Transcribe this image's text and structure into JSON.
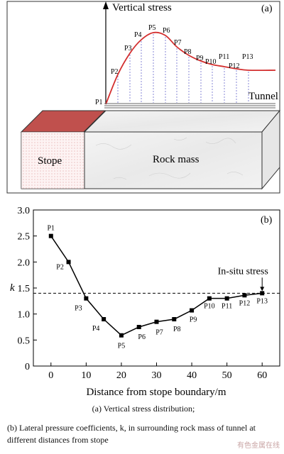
{
  "chart_data": [
    {
      "type": "diagram",
      "panel_label": "(a)",
      "ylabel": "Vertical stress",
      "points": [
        "P1",
        "P2",
        "P3",
        "P4",
        "P5",
        "P6",
        "P7",
        "P8",
        "P9",
        "P10",
        "P11",
        "P12",
        "P13"
      ],
      "tunnel_label": "Tunnel",
      "stope_label": "Stope",
      "rock_label": "Rock mass",
      "colors": {
        "curve": "#d32f2f",
        "stope": "#c0504d",
        "dashes": "#6a6acd"
      }
    },
    {
      "type": "line",
      "panel_label": "(b)",
      "xlabel": "Distance from stope boundary/m",
      "ylabel": "k",
      "xlim": [
        -5,
        65
      ],
      "ylim": [
        0,
        3.0
      ],
      "xticks": [
        0,
        10,
        20,
        30,
        40,
        50,
        60
      ],
      "yticks": [
        "0",
        "0.5",
        "1.0",
        "1.5",
        "2.0",
        "2.5",
        "3.0"
      ],
      "x": [
        0,
        5,
        10,
        15,
        20,
        25,
        30,
        35,
        40,
        45,
        50,
        55,
        60
      ],
      "values": [
        2.5,
        2.0,
        1.3,
        0.9,
        0.59,
        0.75,
        0.85,
        0.9,
        1.07,
        1.3,
        1.3,
        1.36,
        1.4
      ],
      "point_labels": [
        "P1",
        "P2",
        "P3",
        "P4",
        "P5",
        "P6",
        "P7",
        "P8",
        "P9",
        "P10",
        "P11",
        "P12",
        "P13"
      ],
      "reference_line": {
        "y": 1.4,
        "label": "In-situ stress"
      },
      "grid": false
    }
  ],
  "captions": {
    "a": "(a)  Vertical stress distribution;",
    "b": "(b) Lateral pressure coefficients, k, in surrounding rock mass of tunnel at different distances from stope"
  },
  "watermark": "有色金属在线"
}
